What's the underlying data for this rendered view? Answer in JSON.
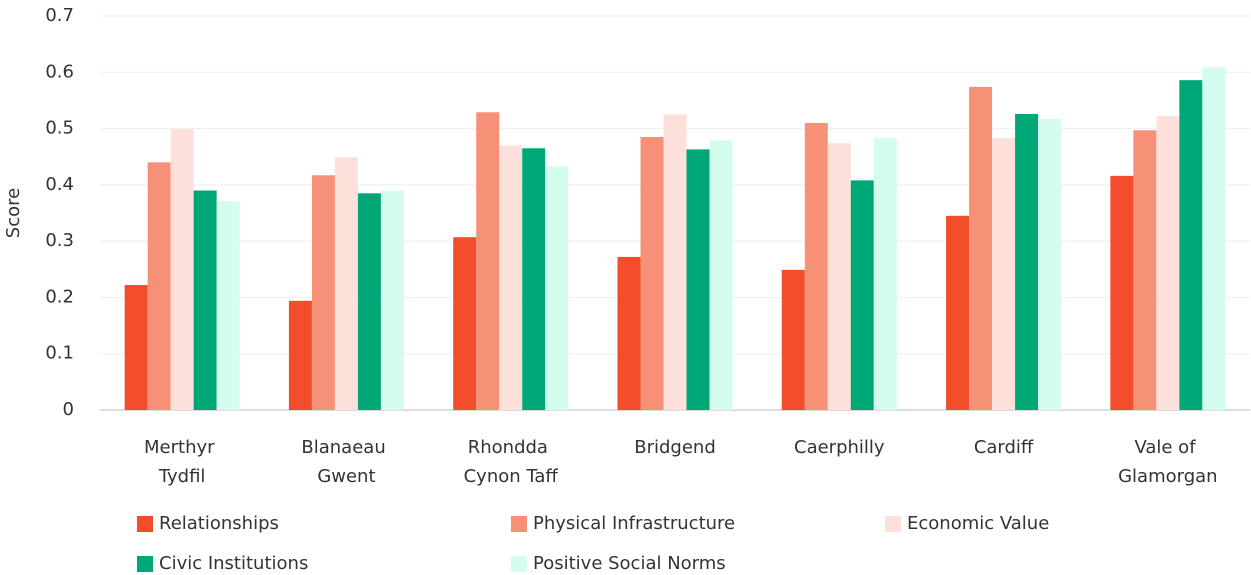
{
  "chart_data": {
    "type": "bar",
    "ylabel": "Score",
    "categories": [
      "Merthyr Tydfil",
      "Blanaeau Gwent",
      "Rhondda Cynon Taff",
      "Bridgend",
      "Caerphilly",
      "Cardiff",
      "Vale of Glamorgan"
    ],
    "series": [
      {
        "name": "Relationships",
        "color": "#f24e2b",
        "values": [
          0.222,
          0.194,
          0.307,
          0.272,
          0.249,
          0.345,
          0.416
        ]
      },
      {
        "name": "Physical Infrastructure",
        "color": "#f69178",
        "values": [
          0.44,
          0.417,
          0.529,
          0.485,
          0.51,
          0.574,
          0.497
        ]
      },
      {
        "name": "Economic Value",
        "color": "#fde0da",
        "values": [
          0.499,
          0.449,
          0.47,
          0.525,
          0.474,
          0.483,
          0.522
        ]
      },
      {
        "name": "Civic Institutions",
        "color": "#00a878",
        "values": [
          0.39,
          0.385,
          0.465,
          0.463,
          0.408,
          0.526,
          0.586
        ]
      },
      {
        "name": "Positive Social Norms",
        "color": "#d4fcef",
        "values": [
          0.371,
          0.39,
          0.433,
          0.479,
          0.483,
          0.517,
          0.609
        ]
      }
    ],
    "ylim": [
      0,
      0.7
    ],
    "yticks": [
      0,
      0.1,
      0.2,
      0.3,
      0.4,
      0.5,
      0.6,
      0.7
    ],
    "grid": true,
    "legend": "bottom"
  }
}
